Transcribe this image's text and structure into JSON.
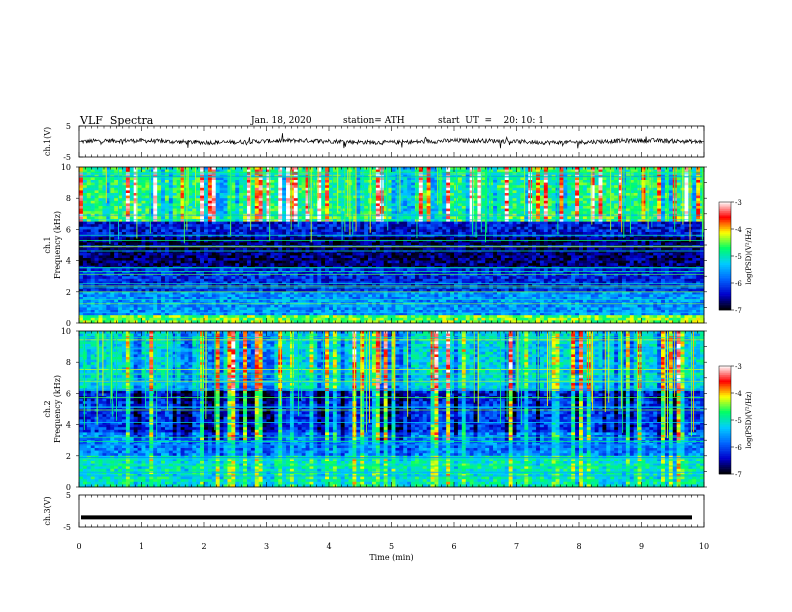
{
  "header": {
    "title": "VLF  Spectra",
    "date": "Jan. 18, 2020",
    "station": "station= ATH",
    "start_ut": "start  UT  =    20: 10: 1"
  },
  "chart_data": [
    {
      "type": "line",
      "panel": "ch1-waveform",
      "ylabel": "ch.1(V)",
      "ylim": [
        -5,
        5
      ],
      "yticks": [
        "5",
        "-5"
      ],
      "series": [
        {
          "values_description_free": true,
          "baseline": 0.0,
          "noise_amplitude": 1.0
        }
      ],
      "color": "#000000"
    },
    {
      "type": "heatmap",
      "panel": "ch1-spectrogram",
      "ylabel": "Frequency  (kHz)",
      "channel_label": "ch.1",
      "ylim": [
        0,
        10
      ],
      "yticks": [
        "0",
        "2",
        "4",
        "6",
        "8",
        "10"
      ],
      "colorbar": {
        "label": "log(PSD)(V²/Hz)",
        "range": [
          -7,
          -3
        ],
        "ticks": [
          "-3",
          "-4",
          "-5",
          "-6",
          "-7"
        ]
      },
      "bands": [
        {
          "from_khz": 0.0,
          "to_khz": 0.5,
          "level": -4.5
        },
        {
          "from_khz": 0.5,
          "to_khz": 2.0,
          "level": -5.6
        },
        {
          "from_khz": 2.0,
          "to_khz": 3.5,
          "level": -6.2
        },
        {
          "from_khz": 3.5,
          "to_khz": 5.5,
          "level": -6.7
        },
        {
          "from_khz": 5.5,
          "to_khz": 6.5,
          "level": -6.3
        },
        {
          "from_khz": 6.5,
          "to_khz": 7.0,
          "level": -4.6
        },
        {
          "from_khz": 7.0,
          "to_khz": 10.0,
          "level": -4.8
        }
      ]
    },
    {
      "type": "heatmap",
      "panel": "ch2-spectrogram",
      "ylabel": "Frequency  (kHz)",
      "channel_label": "ch.2",
      "ylim": [
        0,
        10
      ],
      "yticks": [
        "0",
        "2",
        "4",
        "6",
        "8",
        "10"
      ],
      "colorbar": {
        "label": "log(PSD)(V²/Hz)",
        "range": [
          -7,
          -3
        ],
        "ticks": [
          "-3",
          "-4",
          "-5",
          "-6",
          "-7"
        ]
      },
      "bands": [
        {
          "from_khz": 0.0,
          "to_khz": 2.0,
          "level": -5.0
        },
        {
          "from_khz": 2.0,
          "to_khz": 3.5,
          "level": -5.7
        },
        {
          "from_khz": 3.5,
          "to_khz": 5.5,
          "level": -6.1
        },
        {
          "from_khz": 5.5,
          "to_khz": 6.2,
          "level": -6.3
        },
        {
          "from_khz": 6.2,
          "to_khz": 10.0,
          "level": -5.2
        }
      ]
    },
    {
      "type": "line",
      "panel": "ch3-waveform",
      "ylabel": "ch.3(V)",
      "ylim": [
        -5,
        5
      ],
      "yticks": [
        "5",
        "-5"
      ],
      "series": [
        {
          "constant_value": -2.0
        }
      ],
      "xlabel": "Time  (min)",
      "xlim": [
        0,
        10
      ],
      "xticks": [
        "0",
        "1",
        "2",
        "3",
        "4",
        "5",
        "6",
        "7",
        "8",
        "9",
        "10"
      ]
    }
  ],
  "colors": {
    "colorscale": [
      "#000000",
      "#0000cc",
      "#0066ff",
      "#00ccff",
      "#00ff66",
      "#ffff00",
      "#ff0000",
      "#ffffff"
    ],
    "axis": "#000000"
  }
}
